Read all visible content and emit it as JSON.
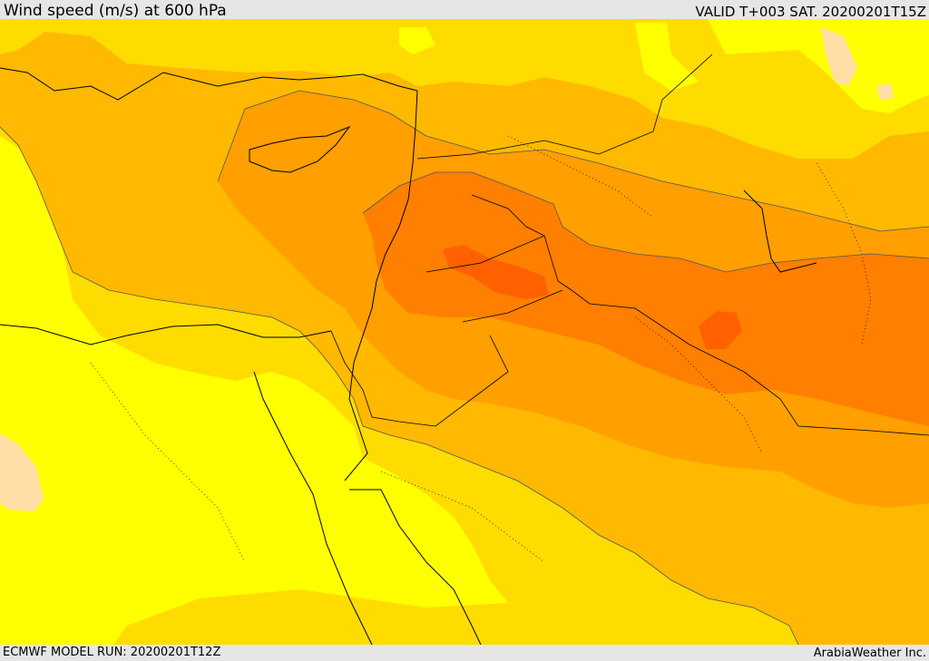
{
  "header": {
    "title": "Wind speed (m/s) at 600 hPa",
    "valid_time": "VALID T+003 SAT. 20200201T15Z"
  },
  "footer": {
    "model_run": "ECMWF MODEL RUN: 20200201T12Z",
    "credit": "ArabiaWeather Inc."
  },
  "map": {
    "palette": {
      "band_1": "#ffff00",
      "band_2": "#ffdc00",
      "band_3": "#ffb900",
      "band_4": "#ff9f00",
      "band_5": "#ff7f00",
      "band_6": "#ff6000",
      "calm": "#ffdea6"
    },
    "coastline_color": "#000000",
    "contour_color": "#555555"
  }
}
